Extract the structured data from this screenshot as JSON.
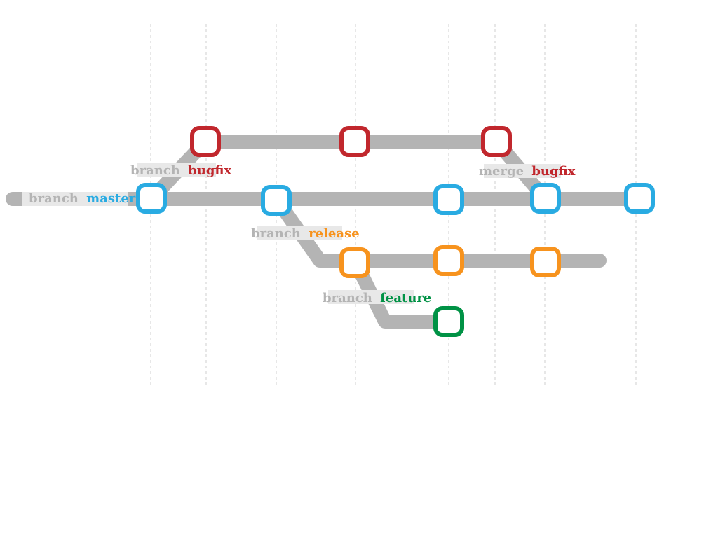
{
  "diagram": {
    "colors": {
      "track": "#b4b4b4",
      "master": "#29abe2",
      "bugfix": "#c1272d",
      "release": "#f7931e",
      "feature": "#009245"
    },
    "labels": [
      {
        "id": "master",
        "verb": "branch",
        "name": "master"
      },
      {
        "id": "bugfix",
        "verb": "branch",
        "name": "bugfix"
      },
      {
        "id": "release",
        "verb": "branch",
        "name": "release"
      },
      {
        "id": "feature",
        "verb": "branch",
        "name": "feature"
      },
      {
        "id": "merge",
        "verb": "merge",
        "name": "bugfix"
      }
    ]
  }
}
